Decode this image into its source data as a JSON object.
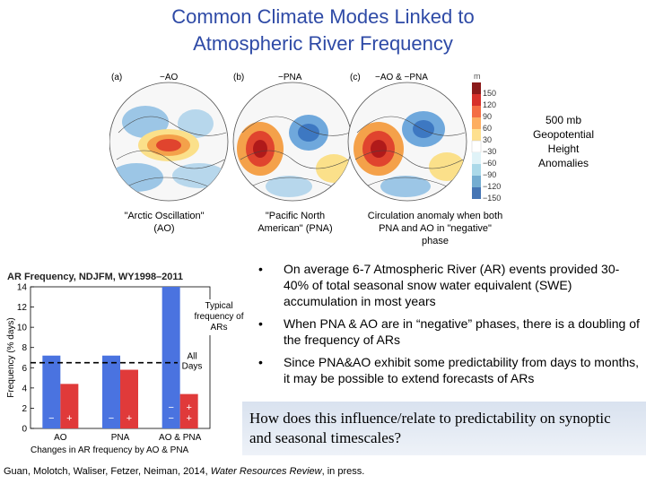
{
  "title_line1": "Common Climate Modes Linked to",
  "title_line2": "Atmospheric River Frequency",
  "maps": {
    "panels": [
      {
        "letter": "(a)",
        "label": "−AO"
      },
      {
        "letter": "(b)",
        "label": "−PNA"
      },
      {
        "letter": "(c)",
        "label": "−AO  &  −PNA"
      }
    ],
    "colorbar_unit": "m",
    "colorbar_ticks": [
      "150",
      "120",
      "90",
      "60",
      "30",
      "−30",
      "−60",
      "−90",
      "−120",
      "−150"
    ],
    "colorbar_label": "500 mb Geopotential Height Anomalies",
    "captions": {
      "ao": "\"Arctic Oscillation\" (AO)",
      "pna": "\"Pacific North American\" (PNA)",
      "both": "Circulation anomaly when both PNA and AO in \"negative\" phase"
    }
  },
  "chart_data": {
    "type": "bar",
    "title": "AR Frequency, NDJFM, WY1998–2011",
    "ylabel": "Frequency (% days)",
    "ylim": [
      0,
      14
    ],
    "yticks": [
      0,
      2,
      4,
      6,
      8,
      10,
      12,
      14
    ],
    "categories": [
      "AO",
      "PNA",
      "AO & PNA"
    ],
    "series": [
      {
        "name": "−",
        "color": "#4a73e0",
        "values": [
          7.2,
          7.2,
          14
        ]
      },
      {
        "name": "+",
        "color": "#e03a3a",
        "values": [
          4.4,
          5.8,
          3.4
        ]
      }
    ],
    "bar_signs": [
      "−",
      "+"
    ],
    "reference_line": {
      "value": 6.5,
      "label": "All Days"
    },
    "callout": "Typical frequency of ARs",
    "caption": "Changes in AR frequency by AO & PNA"
  },
  "bullets": [
    "On average 6-7 Atmospheric River (AR) events provided 30-40% of total seasonal snow water equivalent (SWE) accumulation in most years",
    "When PNA & AO are in “negative” phases, there is a doubling of the frequency of ARs",
    "Since PNA&AO exhibit some predictability from days to months, it may be possible to extend forecasts of ARs"
  ],
  "bullet_symbol": "•",
  "question": "How does this influence/relate to predictability on synoptic and seasonal timescales?",
  "footer": {
    "authors": "Guan, Molotch, Waliser, Fetzer, Neiman, 2014, ",
    "journal": "Water Resources Review",
    "suffix": ", in press."
  }
}
